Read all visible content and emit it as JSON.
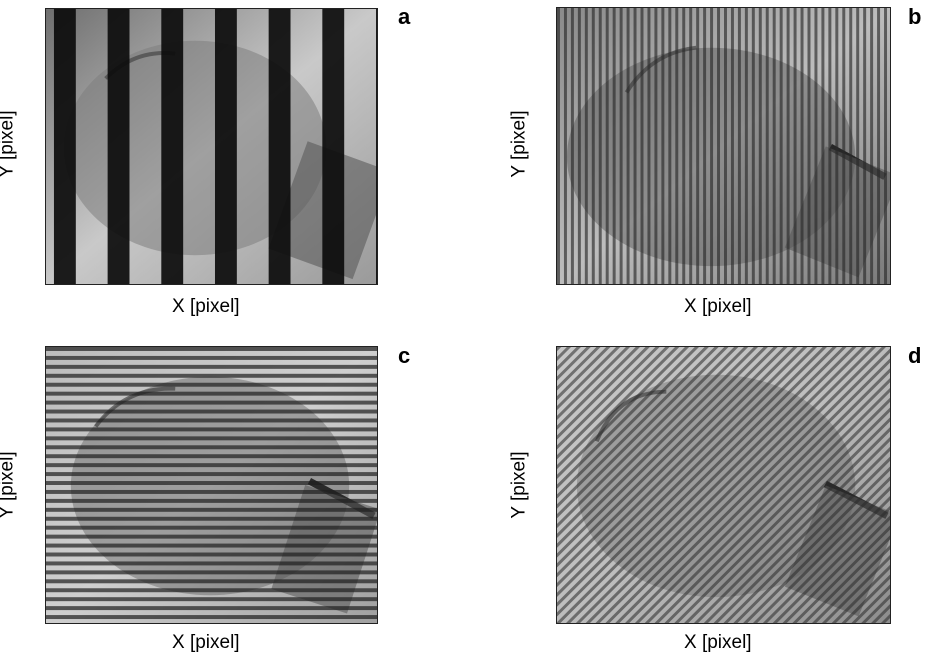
{
  "panels": [
    {
      "letter": "a",
      "xlabel": "X [pixel]",
      "ylabel": "Y [pixel]",
      "pattern": "wide-vertical-fringes"
    },
    {
      "letter": "b",
      "xlabel": "X [pixel]",
      "ylabel": "Y [pixel]",
      "pattern": "fine-vertical-fringes"
    },
    {
      "letter": "c",
      "xlabel": "X [pixel]",
      "ylabel": "Y [pixel]",
      "pattern": "horizontal-fringes"
    },
    {
      "letter": "d",
      "xlabel": "X [pixel]",
      "ylabel": "Y [pixel]",
      "pattern": "diagonal-fringes"
    }
  ]
}
